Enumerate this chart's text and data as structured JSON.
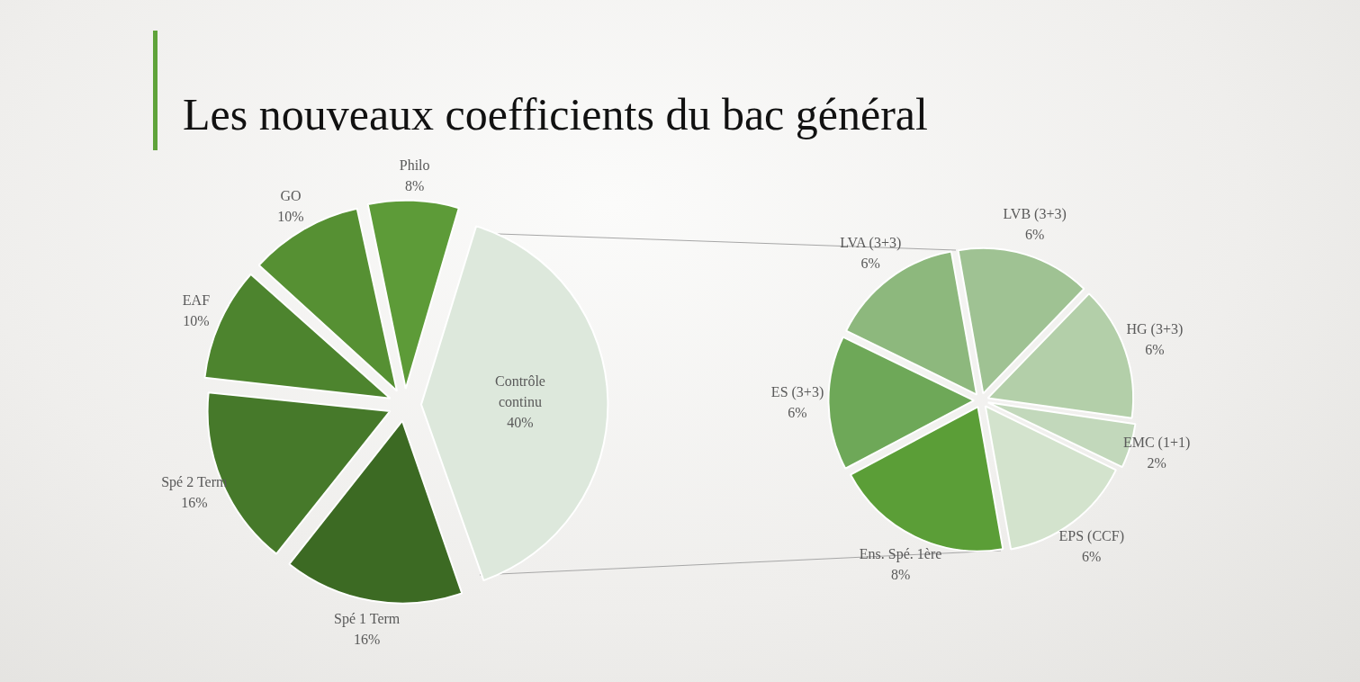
{
  "chart_data": [
    {
      "type": "pie",
      "title": "Les nouveaux coefficients du bac général",
      "categories": [
        "Philo",
        "Contrôle continu",
        "Spé 1 Term",
        "Spé 2 Term",
        "EAF",
        "GO"
      ],
      "values": [
        8,
        40,
        16,
        16,
        10,
        10
      ],
      "value_labels": [
        "8%",
        "40%",
        "16%",
        "16%",
        "10%",
        "10%"
      ],
      "colors": [
        "#5d9b38",
        "#dde8dc",
        "#3c6a23",
        "#46792a",
        "#4d842e",
        "#569033"
      ]
    },
    {
      "type": "pie",
      "categories": [
        "LVB (3+3)",
        "HG (3+3)",
        "EMC (1+1)",
        "EPS (CCF)",
        "Ens. Spé. 1ère",
        "ES (3+3)",
        "LVA (3+3)"
      ],
      "values": [
        6,
        6,
        2,
        6,
        8,
        6,
        6
      ],
      "value_labels": [
        "6%",
        "6%",
        "2%",
        "6%",
        "8%",
        "6%",
        "6%"
      ],
      "colors": [
        "#9fc293",
        "#b3cfa9",
        "#c2d8bb",
        "#d3e3cd",
        "#5b9e37",
        "#6ea858",
        "#8db87d"
      ]
    }
  ]
}
